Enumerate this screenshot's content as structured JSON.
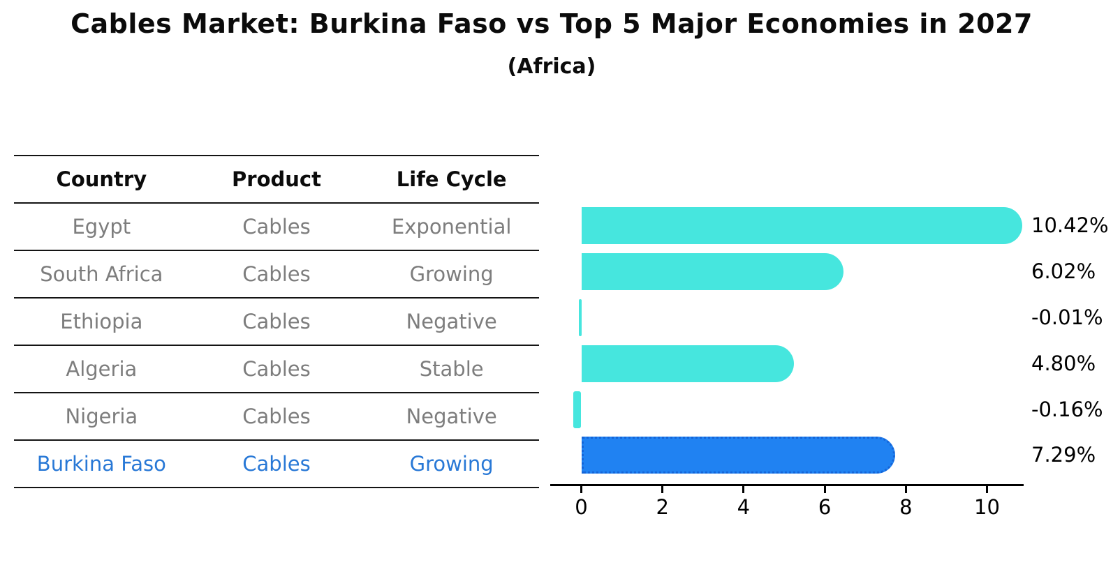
{
  "title": "Cables Market: Burkina Faso vs Top 5 Major Economies in 2027",
  "subtitle": "(Africa)",
  "table": {
    "headers": [
      "Country",
      "Product",
      "Life Cycle"
    ],
    "rows": [
      {
        "country": "Egypt",
        "product": "Cables",
        "life_cycle": "Exponential",
        "highlight": false
      },
      {
        "country": "South Africa",
        "product": "Cables",
        "life_cycle": "Growing",
        "highlight": false
      },
      {
        "country": "Ethiopia",
        "product": "Cables",
        "life_cycle": "Negative",
        "highlight": false
      },
      {
        "country": "Algeria",
        "product": "Cables",
        "life_cycle": "Stable",
        "highlight": false
      },
      {
        "country": "Nigeria",
        "product": "Cables",
        "life_cycle": "Negative",
        "highlight": false
      },
      {
        "country": "Burkina Faso",
        "product": "Cables",
        "life_cycle": "Growing",
        "highlight": true
      }
    ]
  },
  "chart_data": {
    "type": "bar",
    "orientation": "horizontal",
    "title": "Cables Market: Burkina Faso vs Top 5 Major Economies in 2027",
    "subtitle": "(Africa)",
    "categories": [
      "Egypt",
      "South Africa",
      "Ethiopia",
      "Algeria",
      "Nigeria",
      "Burkina Faso"
    ],
    "values": [
      10.42,
      6.02,
      -0.01,
      4.8,
      -0.16,
      7.29
    ],
    "value_labels": [
      "10.42%",
      "6.02%",
      "-0.01%",
      "4.80%",
      "-0.16%",
      "7.29%"
    ],
    "highlight_index": 5,
    "x_ticks": [
      0,
      2,
      4,
      6,
      8,
      10
    ],
    "xlim": [
      -0.8,
      10.9
    ],
    "grid": false,
    "legend": "none",
    "colors": {
      "bar": "#46e6de",
      "highlight_bar": "#2082f2",
      "highlight_bar_border": "#1565d8",
      "highlight_text": "#2878d6",
      "table_text": "#7d7d7d",
      "axis_text": "#000000"
    }
  }
}
